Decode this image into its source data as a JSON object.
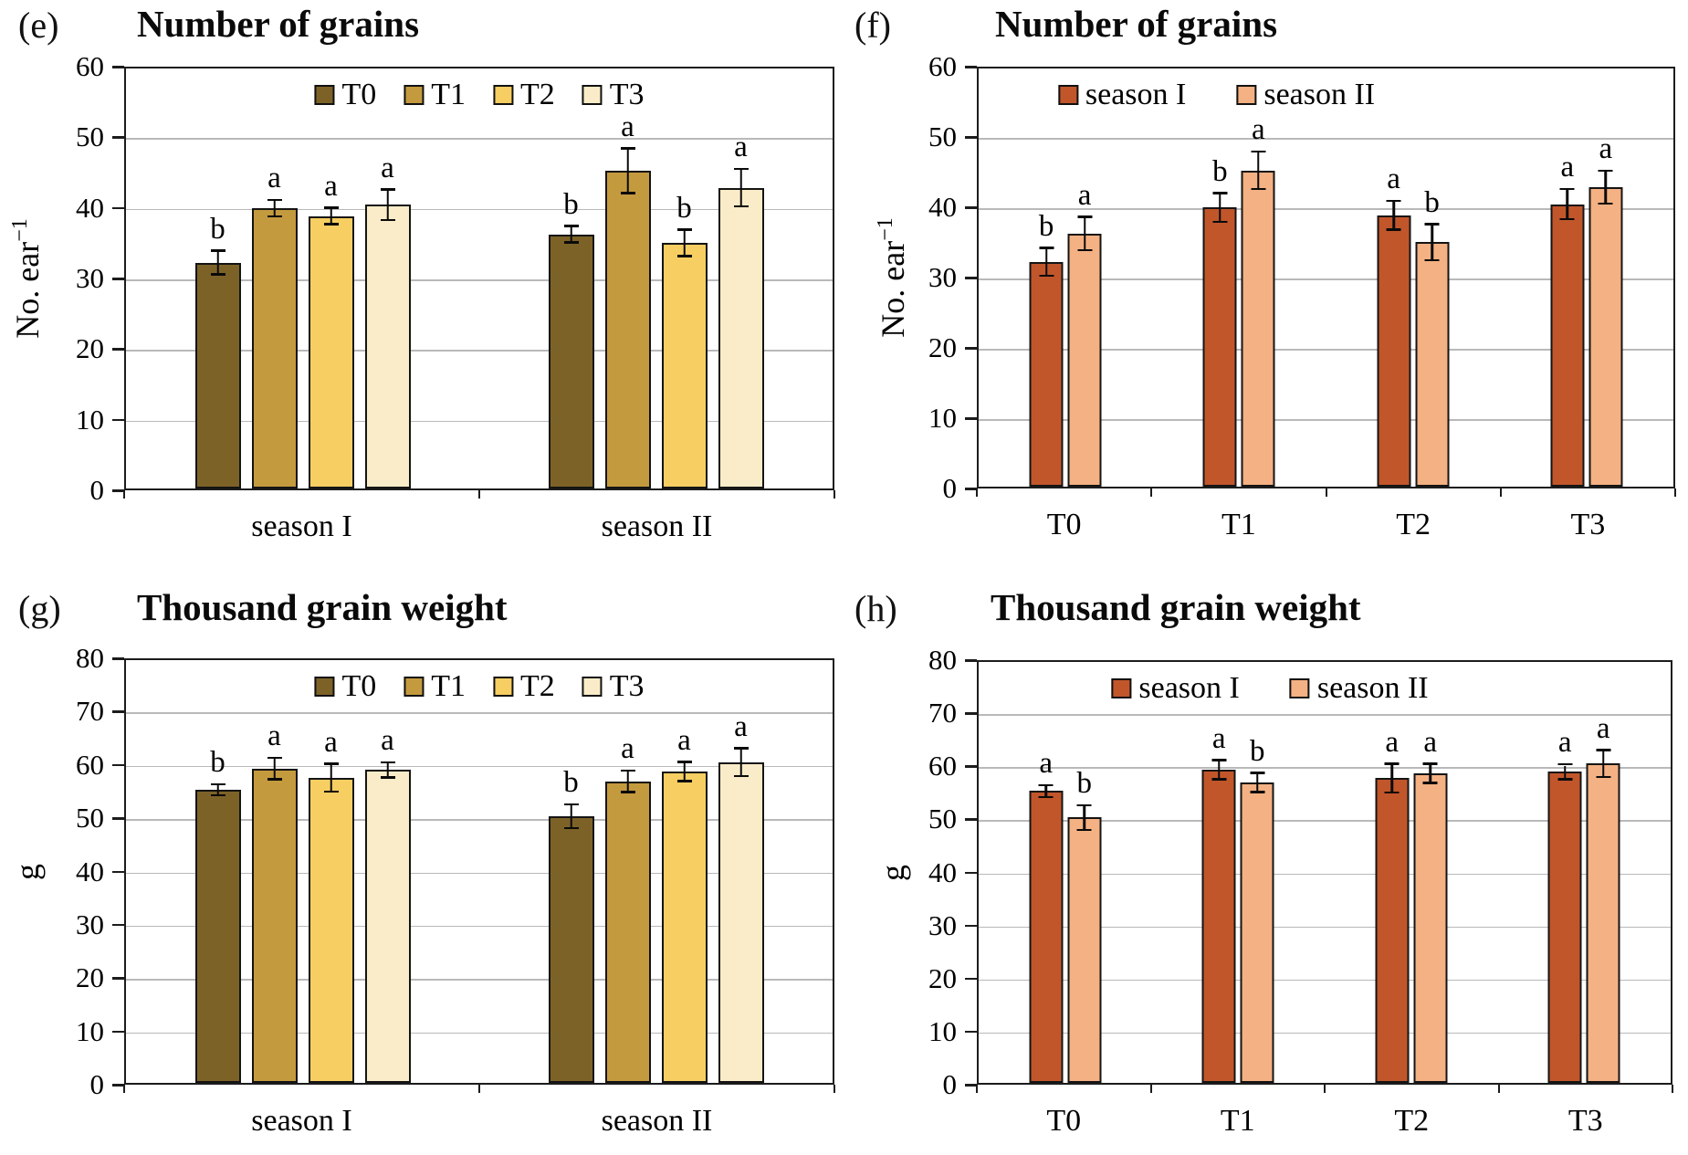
{
  "styles": {
    "background": "#ffffff",
    "grid_color": "#b9b9b9",
    "bar_border": "#141414",
    "plot_border": "#1c1c1c",
    "text_color": "#000000"
  },
  "chart_data": [
    {
      "panel_label": "(e)",
      "type": "bar",
      "title": "Number of grains",
      "ylabel": "No. ear",
      "ylabel_sup": "−1",
      "categories": [
        "season I",
        "season II"
      ],
      "series": [
        {
          "name": "T0",
          "color": "#7d6228",
          "values": [
            32.0,
            36.0
          ],
          "errors": [
            1.5,
            1.0
          ],
          "letters": [
            "b",
            "b"
          ]
        },
        {
          "name": "T1",
          "color": "#c49a3e",
          "values": [
            39.7,
            45.0
          ],
          "errors": [
            1.0,
            3.0
          ],
          "letters": [
            "a",
            "a"
          ]
        },
        {
          "name": "T2",
          "color": "#f7ce62",
          "values": [
            38.6,
            34.8
          ],
          "errors": [
            1.0,
            1.7
          ],
          "letters": [
            "a",
            "b"
          ]
        },
        {
          "name": "T3",
          "color": "#faecc8",
          "values": [
            40.2,
            42.6
          ],
          "errors": [
            2.0,
            2.5
          ],
          "letters": [
            "a",
            "a"
          ]
        }
      ],
      "ylim": [
        0,
        60
      ],
      "ytick_step": 10,
      "grid": true,
      "legend_position": "top-center"
    },
    {
      "panel_label": "(f)",
      "type": "bar",
      "title": "Number of grains",
      "ylabel": "No. ear",
      "ylabel_sup": "−1",
      "categories": [
        "T0",
        "T1",
        "T2",
        "T3"
      ],
      "series": [
        {
          "name": "season I",
          "color": "#c1562b",
          "values": [
            32.0,
            39.7,
            38.6,
            40.2
          ],
          "errors": [
            1.8,
            1.9,
            1.9,
            2.0
          ],
          "letters": [
            "b",
            "b",
            "a",
            "a"
          ]
        },
        {
          "name": "season II",
          "color": "#f4b183",
          "values": [
            36.0,
            45.0,
            34.8,
            42.6
          ],
          "errors": [
            2.2,
            2.5,
            2.4,
            2.2
          ],
          "letters": [
            "a",
            "a",
            "b",
            "a"
          ]
        }
      ],
      "ylim": [
        0,
        60
      ],
      "ytick_step": 10,
      "grid": true,
      "legend_position": "top-center"
    },
    {
      "panel_label": "(g)",
      "type": "bar",
      "title": "Thousand grain weight",
      "ylabel": "g",
      "ylabel_sup": "",
      "categories": [
        "season I",
        "season II"
      ],
      "series": [
        {
          "name": "T0",
          "color": "#7d6228",
          "values": [
            55.0,
            50.0
          ],
          "errors": [
            0.8,
            2.0
          ],
          "letters": [
            "b",
            "b"
          ]
        },
        {
          "name": "T1",
          "color": "#c49a3e",
          "values": [
            59.0,
            56.6
          ],
          "errors": [
            1.8,
            1.8
          ],
          "letters": [
            "a",
            "a"
          ]
        },
        {
          "name": "T2",
          "color": "#f7ce62",
          "values": [
            57.3,
            58.4
          ],
          "errors": [
            2.4,
            1.6
          ],
          "letters": [
            "a",
            "a"
          ]
        },
        {
          "name": "T3",
          "color": "#faecc8",
          "values": [
            58.7,
            60.2
          ],
          "errors": [
            1.2,
            2.4
          ],
          "letters": [
            "a",
            "a"
          ]
        }
      ],
      "ylim": [
        0,
        80
      ],
      "ytick_step": 10,
      "grid": true,
      "legend_position": "top-center"
    },
    {
      "panel_label": "(h)",
      "type": "bar",
      "title": "Thousand grain weight",
      "ylabel": "g",
      "ylabel_sup": "",
      "categories": [
        "T0",
        "T1",
        "T2",
        "T3"
      ],
      "series": [
        {
          "name": "season I",
          "color": "#c1562b",
          "values": [
            55.0,
            59.0,
            57.4,
            58.6
          ],
          "errors": [
            0.9,
            1.6,
            2.5,
            1.2
          ],
          "letters": [
            "a",
            "a",
            "a",
            "a"
          ]
        },
        {
          "name": "season II",
          "color": "#f4b183",
          "values": [
            50.0,
            56.6,
            58.3,
            60.2
          ],
          "errors": [
            2.1,
            1.6,
            1.6,
            2.3
          ],
          "letters": [
            "b",
            "b",
            "a",
            "a"
          ]
        }
      ],
      "ylim": [
        0,
        80
      ],
      "ytick_step": 10,
      "grid": true,
      "legend_position": "top-center"
    }
  ]
}
